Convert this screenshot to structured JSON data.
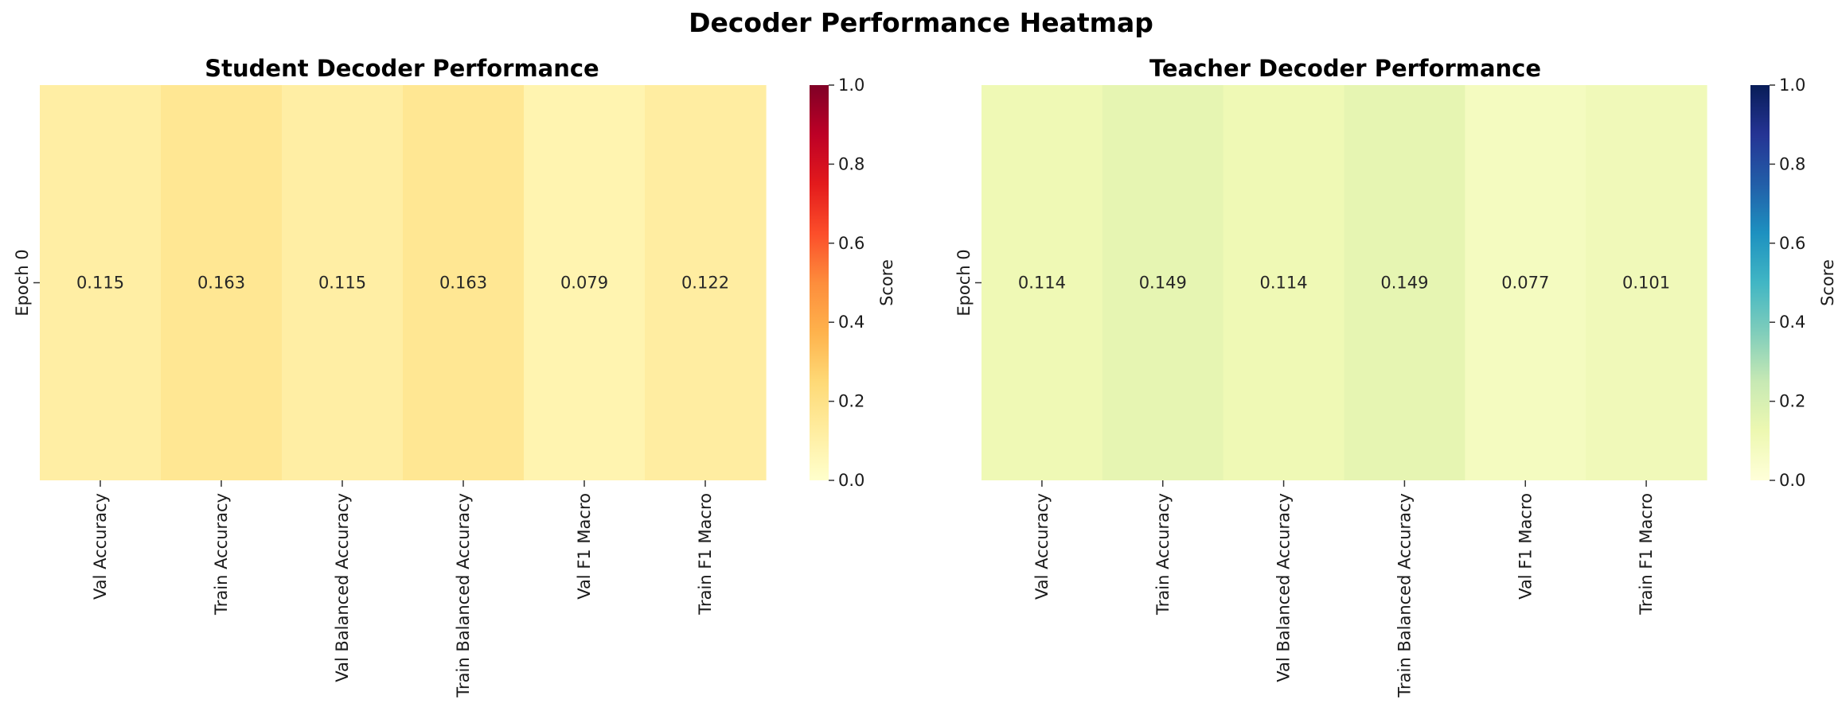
{
  "figure": {
    "title": "Decoder Performance Heatmap"
  },
  "chart_data": [
    {
      "type": "heatmap",
      "title": "Student Decoder Performance",
      "colormap": "YlOrRd",
      "row_labels": [
        "Epoch 0"
      ],
      "col_labels": [
        "Val Accuracy",
        "Train Accuracy",
        "Val Balanced Accuracy",
        "Train Balanced Accuracy",
        "Val F1 Macro",
        "Train F1 Macro"
      ],
      "values": [
        [
          0.115,
          0.163,
          0.115,
          0.163,
          0.079,
          0.122
        ]
      ],
      "value_labels": [
        "0.115",
        "0.163",
        "0.115",
        "0.163",
        "0.079",
        "0.122"
      ],
      "vmin": 0.0,
      "vmax": 1.0,
      "colorbar": {
        "label": "Score",
        "ticks": [
          "0.0",
          "0.2",
          "0.4",
          "0.6",
          "0.8",
          "1.0"
        ]
      }
    },
    {
      "type": "heatmap",
      "title": "Teacher Decoder Performance",
      "colormap": "YlGnBu",
      "row_labels": [
        "Epoch 0"
      ],
      "col_labels": [
        "Val Accuracy",
        "Train Accuracy",
        "Val Balanced Accuracy",
        "Train Balanced Accuracy",
        "Val F1 Macro",
        "Train F1 Macro"
      ],
      "values": [
        [
          0.114,
          0.149,
          0.114,
          0.149,
          0.077,
          0.101
        ]
      ],
      "value_labels": [
        "0.114",
        "0.149",
        "0.114",
        "0.149",
        "0.077",
        "0.101"
      ],
      "vmin": 0.0,
      "vmax": 1.0,
      "colorbar": {
        "label": "Score",
        "ticks": [
          "0.0",
          "0.2",
          "0.4",
          "0.6",
          "0.8",
          "1.0"
        ]
      }
    }
  ]
}
